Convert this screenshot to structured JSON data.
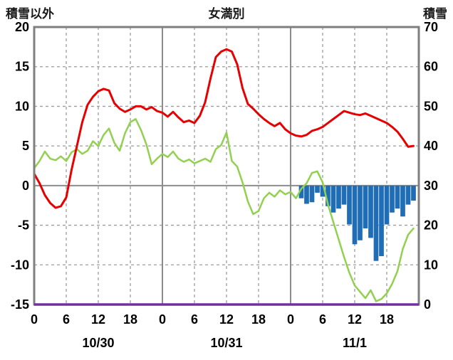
{
  "header": {
    "left_axis_title": "積雪以外",
    "title": "女満別",
    "right_axis_title": "積雪"
  },
  "colors": {
    "red_line": "#e60000",
    "green_line": "#92d050",
    "bars": "#1e6db6",
    "baseline": "#7030a0",
    "grid": "#9b9b9b",
    "day_grid": "#8c8c8c",
    "border": "#7f7f7f",
    "text": "#000000"
  },
  "chart_data": {
    "type": "line",
    "title": "女満別",
    "left_axis": {
      "label": "積雪以外",
      "min": -15,
      "max": 20,
      "ticks": [
        20,
        15,
        10,
        5,
        0,
        -5,
        -10,
        -15
      ]
    },
    "right_axis": {
      "label": "積雪",
      "min": 0,
      "max": 70,
      "ticks": [
        70,
        60,
        50,
        40,
        30,
        20,
        10,
        0
      ]
    },
    "x_axis": {
      "total_hours": 72,
      "hours_per_day": 24,
      "tick_step": 6,
      "tick_labels": [
        "0",
        "6",
        "12",
        "18"
      ],
      "days": [
        "10/30",
        "10/31",
        "11/1"
      ]
    },
    "grid": true,
    "legend": "none",
    "series": [
      {
        "name": "red_line",
        "axis": "left",
        "stroke_width": 3,
        "values": [
          1.5,
          0.3,
          -1.2,
          -2.2,
          -2.8,
          -2.6,
          -1.5,
          2.0,
          5.0,
          8.0,
          10.2,
          11.2,
          11.9,
          12.2,
          12.0,
          10.4,
          9.7,
          9.3,
          9.6,
          10.0,
          10.0,
          9.6,
          9.9,
          9.4,
          9.2,
          8.7,
          9.3,
          8.6,
          8.0,
          8.2,
          7.9,
          8.8,
          10.5,
          13.5,
          16.2,
          16.9,
          17.2,
          16.9,
          15.3,
          12.3,
          10.3,
          9.7,
          9.0,
          8.4,
          7.9,
          7.5,
          7.9,
          7.1,
          6.6,
          6.3,
          6.2,
          6.4,
          6.9,
          7.1,
          7.4,
          7.9,
          8.4,
          8.9,
          9.4,
          9.2,
          9.0,
          8.9,
          9.1,
          8.8,
          8.5,
          8.2,
          7.9,
          7.4,
          6.8,
          5.9,
          4.9,
          5.0
        ]
      },
      {
        "name": "green_line",
        "axis": "left",
        "stroke_width": 2.5,
        "values": [
          2.2,
          3.1,
          4.3,
          3.4,
          3.2,
          3.7,
          3.1,
          4.2,
          4.6,
          4.0,
          4.4,
          5.6,
          5.0,
          6.4,
          7.2,
          5.4,
          4.4,
          6.6,
          8.0,
          8.4,
          7.0,
          5.2,
          2.7,
          3.4,
          4.0,
          3.6,
          4.3,
          3.4,
          3.0,
          3.3,
          2.8,
          3.1,
          3.4,
          3.0,
          4.6,
          5.1,
          6.7,
          3.1,
          2.4,
          0.4,
          -2.0,
          -3.6,
          -3.2,
          -1.6,
          -0.9,
          -1.4,
          -0.6,
          -1.1,
          -0.8,
          -1.6,
          -0.4,
          0.3,
          1.6,
          1.8,
          0.4,
          -2.4,
          -4.6,
          -6.8,
          -9.0,
          -11.0,
          -12.6,
          -13.4,
          -14.2,
          -13.2,
          -14.6,
          -14.3,
          -13.6,
          -12.4,
          -10.8,
          -8.0,
          -6.2,
          -5.4
        ]
      }
    ],
    "bars": {
      "name": "blue_bars",
      "axis": "left",
      "baseline": 0,
      "values": [
        null,
        null,
        null,
        null,
        null,
        null,
        null,
        null,
        null,
        null,
        null,
        null,
        null,
        null,
        null,
        null,
        null,
        null,
        null,
        null,
        null,
        null,
        null,
        null,
        null,
        null,
        null,
        null,
        null,
        null,
        null,
        null,
        null,
        null,
        null,
        null,
        null,
        null,
        null,
        null,
        null,
        null,
        null,
        null,
        null,
        null,
        null,
        null,
        null,
        null,
        -1.6,
        -2.3,
        -2.1,
        -0.9,
        -1.4,
        -2.6,
        -3.4,
        -2.9,
        -2.4,
        -4.9,
        -7.4,
        -6.9,
        -5.4,
        -6.6,
        -9.5,
        -8.9,
        -4.9,
        -3.4,
        -2.9,
        -3.9,
        -2.4,
        -1.9
      ]
    },
    "flat_line": {
      "name": "purple_baseline",
      "axis": "left",
      "value": -15
    }
  }
}
